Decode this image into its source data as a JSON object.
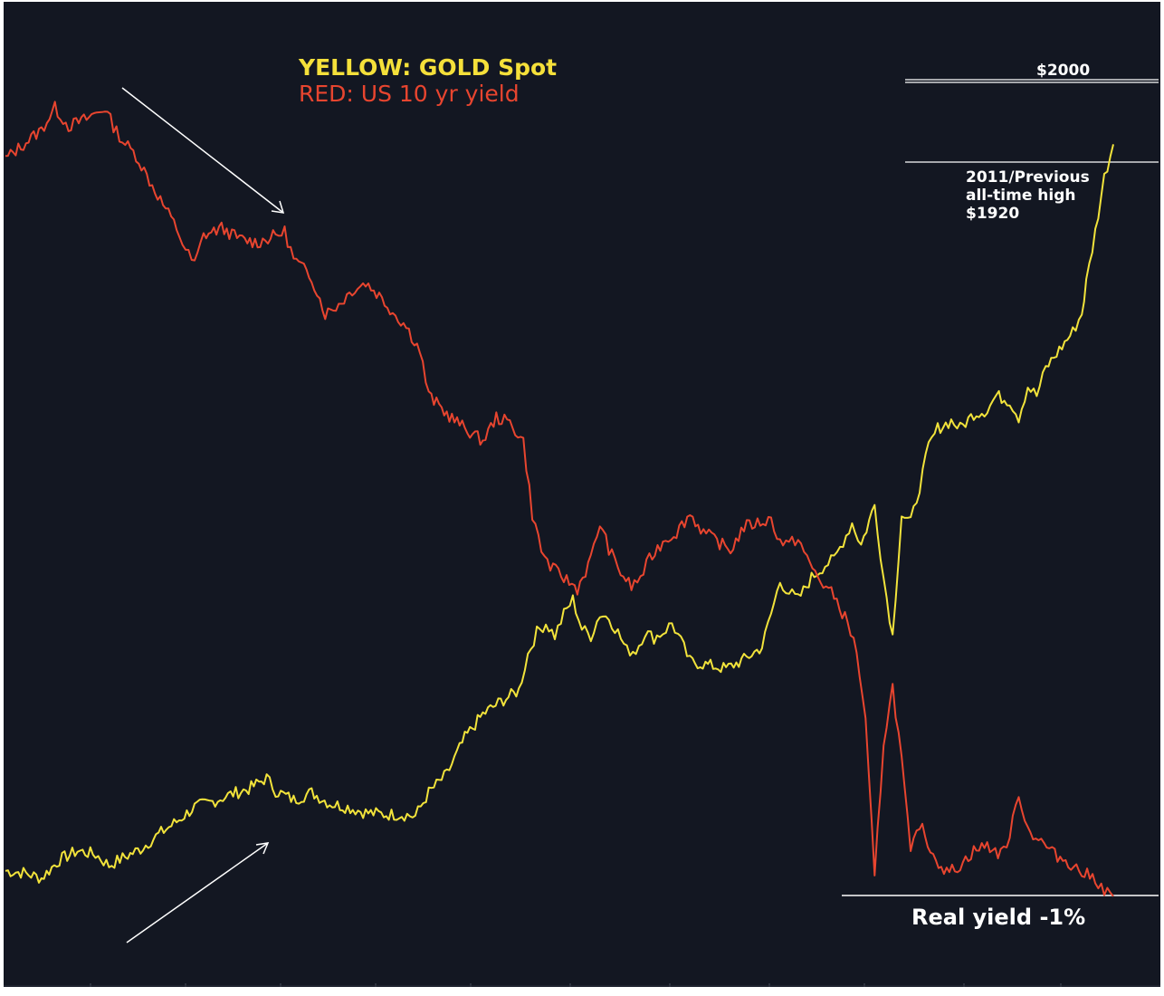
{
  "chart_data": {
    "type": "line",
    "title": "",
    "xlabel": "",
    "ylabel": "",
    "grid": false,
    "legend": [
      "YELLOW: GOLD Spot",
      "RED: US 10 yr yield"
    ],
    "series": [
      {
        "name": "GOLD Spot",
        "color": "#f2e33b",
        "points": [
          [
            0,
            19
          ],
          [
            20,
            18
          ],
          [
            40,
            15
          ],
          [
            60,
            25
          ],
          [
            80,
            30
          ],
          [
            100,
            28
          ],
          [
            115,
            22
          ],
          [
            130,
            26
          ],
          [
            150,
            31
          ],
          [
            170,
            39
          ],
          [
            190,
            46
          ],
          [
            210,
            54
          ],
          [
            230,
            57
          ],
          [
            250,
            61
          ],
          [
            270,
            64
          ],
          [
            290,
            70
          ],
          [
            300,
            63
          ],
          [
            320,
            58
          ],
          [
            340,
            62
          ],
          [
            360,
            56
          ],
          [
            380,
            54
          ],
          [
            400,
            51
          ],
          [
            420,
            50
          ],
          [
            440,
            50
          ],
          [
            455,
            49
          ],
          [
            470,
            62
          ],
          [
            490,
            72
          ],
          [
            510,
            92
          ],
          [
            530,
            105
          ],
          [
            550,
            112
          ],
          [
            570,
            118
          ],
          [
            580,
            138
          ],
          [
            590,
            150
          ],
          [
            600,
            155
          ],
          [
            610,
            148
          ],
          [
            620,
            160
          ],
          [
            630,
            168
          ],
          [
            640,
            152
          ],
          [
            650,
            148
          ],
          [
            660,
            160
          ],
          [
            670,
            158
          ],
          [
            680,
            150
          ],
          [
            690,
            140
          ],
          [
            700,
            140
          ],
          [
            710,
            150
          ],
          [
            720,
            147
          ],
          [
            730,
            150
          ],
          [
            740,
            155
          ],
          [
            750,
            145
          ],
          [
            760,
            134
          ],
          [
            780,
            132
          ],
          [
            800,
            130
          ],
          [
            820,
            135
          ],
          [
            840,
            142
          ],
          [
            850,
            160
          ],
          [
            860,
            178
          ],
          [
            870,
            172
          ],
          [
            880,
            168
          ],
          [
            895,
            180
          ],
          [
            910,
            187
          ],
          [
            920,
            190
          ],
          [
            930,
            200
          ],
          [
            940,
            210
          ],
          [
            950,
            198
          ],
          [
            965,
            220
          ],
          [
            975,
            180
          ],
          [
            985,
            148
          ],
          [
            995,
            215
          ],
          [
            1005,
            210
          ],
          [
            1015,
            230
          ],
          [
            1025,
            252
          ],
          [
            1035,
            262
          ],
          [
            1050,
            266
          ],
          [
            1060,
            262
          ],
          [
            1075,
            270
          ],
          [
            1090,
            272
          ],
          [
            1100,
            280
          ],
          [
            1115,
            277
          ],
          [
            1125,
            268
          ],
          [
            1135,
            285
          ],
          [
            1145,
            280
          ],
          [
            1155,
            295
          ],
          [
            1170,
            305
          ],
          [
            1185,
            315
          ],
          [
            1195,
            325
          ],
          [
            1200,
            342
          ],
          [
            1210,
            370
          ],
          [
            1220,
            400
          ],
          [
            1230,
            418
          ]
        ]
      },
      {
        "name": "US 10 yr yield",
        "color": "#e8452f",
        "points": [
          [
            0,
            410
          ],
          [
            20,
            418
          ],
          [
            40,
            426
          ],
          [
            55,
            438
          ],
          [
            70,
            428
          ],
          [
            90,
            432
          ],
          [
            110,
            438
          ],
          [
            120,
            428
          ],
          [
            130,
            420
          ],
          [
            145,
            412
          ],
          [
            160,
            398
          ],
          [
            175,
            385
          ],
          [
            190,
            372
          ],
          [
            200,
            360
          ],
          [
            210,
            352
          ],
          [
            220,
            368
          ],
          [
            240,
            372
          ],
          [
            260,
            366
          ],
          [
            280,
            364
          ],
          [
            300,
            368
          ],
          [
            310,
            370
          ],
          [
            320,
            355
          ],
          [
            340,
            345
          ],
          [
            355,
            325
          ],
          [
            370,
            330
          ],
          [
            385,
            338
          ],
          [
            400,
            342
          ],
          [
            415,
            335
          ],
          [
            430,
            326
          ],
          [
            445,
            318
          ],
          [
            460,
            305
          ],
          [
            470,
            280
          ],
          [
            490,
            270
          ],
          [
            510,
            262
          ],
          [
            530,
            255
          ],
          [
            545,
            268
          ],
          [
            560,
            265
          ],
          [
            575,
            255
          ],
          [
            585,
            215
          ],
          [
            595,
            195
          ],
          [
            605,
            186
          ],
          [
            620,
            180
          ],
          [
            635,
            174
          ],
          [
            650,
            190
          ],
          [
            660,
            210
          ],
          [
            670,
            196
          ],
          [
            680,
            185
          ],
          [
            695,
            175
          ],
          [
            705,
            180
          ],
          [
            715,
            190
          ],
          [
            730,
            200
          ],
          [
            745,
            205
          ],
          [
            760,
            215
          ],
          [
            775,
            205
          ],
          [
            790,
            200
          ],
          [
            805,
            195
          ],
          [
            820,
            208
          ],
          [
            835,
            210
          ],
          [
            850,
            212
          ],
          [
            860,
            200
          ],
          [
            870,
            198
          ],
          [
            880,
            202
          ],
          [
            890,
            190
          ],
          [
            905,
            178
          ],
          [
            920,
            170
          ],
          [
            935,
            155
          ],
          [
            945,
            140
          ],
          [
            955,
            100
          ],
          [
            965,
            15
          ],
          [
            975,
            90
          ],
          [
            985,
            120
          ],
          [
            995,
            80
          ],
          [
            1005,
            28
          ],
          [
            1015,
            45
          ],
          [
            1030,
            28
          ],
          [
            1045,
            18
          ],
          [
            1060,
            22
          ],
          [
            1075,
            30
          ],
          [
            1090,
            33
          ],
          [
            1105,
            28
          ],
          [
            1115,
            38
          ],
          [
            1125,
            62
          ],
          [
            1135,
            42
          ],
          [
            1150,
            35
          ],
          [
            1165,
            28
          ],
          [
            1180,
            24
          ],
          [
            1195,
            18
          ],
          [
            1210,
            15
          ],
          [
            1220,
            8
          ],
          [
            1230,
            5
          ]
        ]
      }
    ],
    "annotations": {
      "label_2000": "$2000",
      "label_1920_line1": "2011/Previous",
      "label_1920_line2": "all-time high",
      "label_1920_line3": "$1920",
      "real_yield": "Real yield -1%"
    },
    "legend_labels": {
      "gold": "YELLOW: GOLD Spot",
      "yield": "RED: US 10 yr yield"
    },
    "colors": {
      "background": "#131722",
      "gold": "#f2e33b",
      "yield": "#e8452f",
      "annotation": "#ffffff",
      "legend_gold": "#f5e03a",
      "legend_yield": "#e8452f"
    }
  }
}
